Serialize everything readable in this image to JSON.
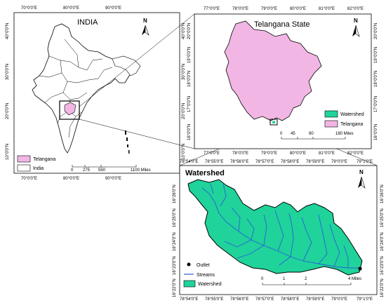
{
  "panels": {
    "india": {
      "title": "INDIA",
      "top_coords": [
        "70°0'0\"E",
        "80°0'0\"E",
        "90°0'0\"E"
      ],
      "bottom_coords": [
        "70°0'0\"E",
        "80°0'0\"E",
        "90°0'0\"E"
      ],
      "left_coords": [
        "40°0'0\"N",
        "30°0'0\"N",
        "20°0'0\"N",
        "10°0'0\"N"
      ],
      "right_coords": [
        "40°0'0\"N",
        "30°0'0\"N",
        "20°0'0\"N",
        "10°0'0\"N"
      ],
      "north": "N",
      "legend": [
        {
          "label": "Telangana",
          "color": "#f2b6e4"
        },
        {
          "label": "India",
          "color": "#ffffff"
        }
      ],
      "scale": {
        "labels": [
          "0",
          "275",
          "550",
          "1100 Miles"
        ]
      }
    },
    "telangana": {
      "title": "Telangana State",
      "top_coords": [
        "77°0'0\"E",
        "78°0'0\"E",
        "79°0'0\"E",
        "80°0'0\"E",
        "81°0'0\"E",
        "82°0'0\"E"
      ],
      "bottom_coords": [
        "77°0'0\"E",
        "78°0'0\"E",
        "79°0'0\"E",
        "80°0'0\"E",
        "81°0'0\"E",
        "82°0'0\"E"
      ],
      "left_coords": [
        "20°0'0\"N",
        "19°0'0\"N",
        "18°0'0\"N",
        "17°0'0\"N",
        "16°0'0\"N"
      ],
      "right_coords": [
        "20°0'0\"N",
        "19°0'0\"N",
        "18°0'0\"N",
        "17°0'0\"N",
        "16°0'0\"N"
      ],
      "north": "N",
      "legend": [
        {
          "label": "Watershed",
          "color": "#1fd39a"
        },
        {
          "label": "Telangana",
          "color": "#f2b6e4"
        }
      ],
      "scale": {
        "labels": [
          "0",
          "45",
          "90",
          "180 Miles"
        ]
      }
    },
    "watershed": {
      "title": "Watershed",
      "top_coords": [
        "78°54'0\"E",
        "78°55'0\"E",
        "78°56'0\"E",
        "78°57'0\"E",
        "78°58'0\"E",
        "78°59'0\"E",
        "79°0'0\"E",
        "79°1'0\"E"
      ],
      "bottom_coords": [
        "78°54'0\"E",
        "78°55'0\"E",
        "78°56'0\"E",
        "78°57'0\"E",
        "78°58'0\"E",
        "78°59'0\"E",
        "79°0'0\"E",
        "79°1'0\"E"
      ],
      "left_coords": [
        "16°26'0\"N",
        "16°25'0\"N",
        "16°24'0\"N",
        "16°23'0\"N",
        "16°22'0\"N"
      ],
      "right_coords": [
        "16°26'0\"N",
        "16°25'0\"N",
        "16°24'0\"N",
        "16°23'0\"N",
        "16°22'0\"N"
      ],
      "north": "N",
      "legend": [
        {
          "label": "Outlet",
          "symbol": "dot"
        },
        {
          "label": "Streams",
          "symbol": "line",
          "color": "#2b5fd9"
        },
        {
          "label": "Watershed",
          "symbol": "box",
          "color": "#1fd39a"
        }
      ],
      "scale": {
        "labels": [
          "0",
          "1",
          "2",
          "4 Miles"
        ]
      }
    }
  },
  "colors": {
    "telangana_fill": "#f2b6e4",
    "watershed_fill": "#1fd39a",
    "stream": "#2b5fd9",
    "india_fill": "#ffffff",
    "outline": "#000000"
  }
}
